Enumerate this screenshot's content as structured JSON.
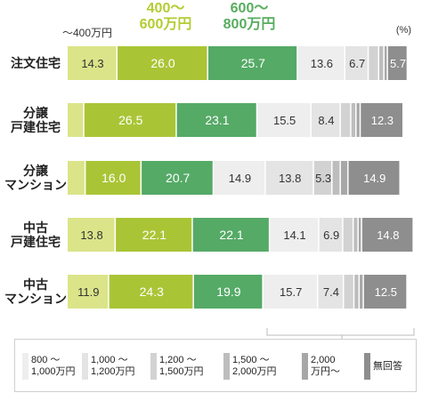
{
  "chart_data": {
    "type": "bar",
    "orientation": "horizontal",
    "stacked": true,
    "unit_label": "(%)",
    "header_labels": [
      {
        "text": "～400万円",
        "color": "#333333"
      },
      {
        "text": "400～\n600万円",
        "color": "#b4cc33"
      },
      {
        "text": "600～\n800万円",
        "color": "#57ad5f"
      }
    ],
    "categories": [
      "注文住宅",
      "分譲\n戸建住宅",
      "分譲\nマンション",
      "中古\n戸建住宅",
      "中古\nマンション"
    ],
    "series": [
      {
        "name": "～400万円",
        "color": "#dbe489",
        "values": [
          14.3,
          4.8,
          5.2,
          13.8,
          11.9
        ]
      },
      {
        "name": "400～600万円",
        "color": "#a9c536",
        "values": [
          26.0,
          26.5,
          16.0,
          22.1,
          24.3
        ]
      },
      {
        "name": "600～800万円",
        "color": "#55aa66",
        "values": [
          25.7,
          23.1,
          20.7,
          22.1,
          19.9
        ]
      },
      {
        "name": "800～1,000万円",
        "color": "#eeeeee",
        "values": [
          13.6,
          15.5,
          14.9,
          14.1,
          15.7
        ]
      },
      {
        "name": "1,000～1,200万円",
        "color": "#e4e4e4",
        "values": [
          6.7,
          8.4,
          13.8,
          6.9,
          7.4
        ]
      },
      {
        "name": "1,200～1,500万円",
        "color": "#d2d2d2",
        "values": [
          3.0,
          3.0,
          5.3,
          3.0,
          3.0
        ]
      },
      {
        "name": "1,500～2,000万円",
        "color": "#bdbdbd",
        "values": [
          1.5,
          1.5,
          2.4,
          1.4,
          1.5
        ]
      },
      {
        "name": "2,000万円～",
        "color": "#a7a7a7",
        "values": [
          1.0,
          1.2,
          2.2,
          1.0,
          1.2
        ]
      },
      {
        "name": "無回答",
        "color": "#8e8e8e",
        "values": [
          5.7,
          12.3,
          14.9,
          14.8,
          12.5
        ]
      }
    ],
    "data_labels": [
      [
        "14.3",
        "26.0",
        "25.7",
        "13.6",
        "6.7",
        "",
        "",
        "",
        "5.7"
      ],
      [
        "",
        "26.5",
        "23.1",
        "15.5",
        "8.4",
        "",
        "",
        "",
        "12.3"
      ],
      [
        "",
        "16.0",
        "20.7",
        "14.9",
        "13.8",
        "5.3",
        "",
        "",
        "14.9"
      ],
      [
        "13.8",
        "22.1",
        "22.1",
        "14.1",
        "6.9",
        "",
        "",
        "",
        "14.8"
      ],
      [
        "11.9",
        "24.3",
        "19.9",
        "15.7",
        "7.4",
        "",
        "",
        "",
        "12.5"
      ]
    ],
    "label_colors": [
      "#333333",
      "#ffffff",
      "#ffffff",
      "#333333",
      "#333333",
      "#333333",
      "#333333",
      "#333333",
      "#ffffff"
    ],
    "xlim": [
      0,
      100
    ],
    "legend_position": "bottom",
    "legend_items": [
      {
        "label": "800 ～\n1,000万円",
        "color": "#eeeeee"
      },
      {
        "label": "1,000 ～\n1,200万円",
        "color": "#e4e4e4"
      },
      {
        "label": "1,200 ～\n1,500万円",
        "color": "#d2d2d2"
      },
      {
        "label": "1,500 ～\n2,000万円",
        "color": "#bdbdbd"
      },
      {
        "label": "2,000\n万円～",
        "color": "#a7a7a7"
      },
      {
        "label": "無回答",
        "color": "#8e8e8e"
      }
    ]
  }
}
